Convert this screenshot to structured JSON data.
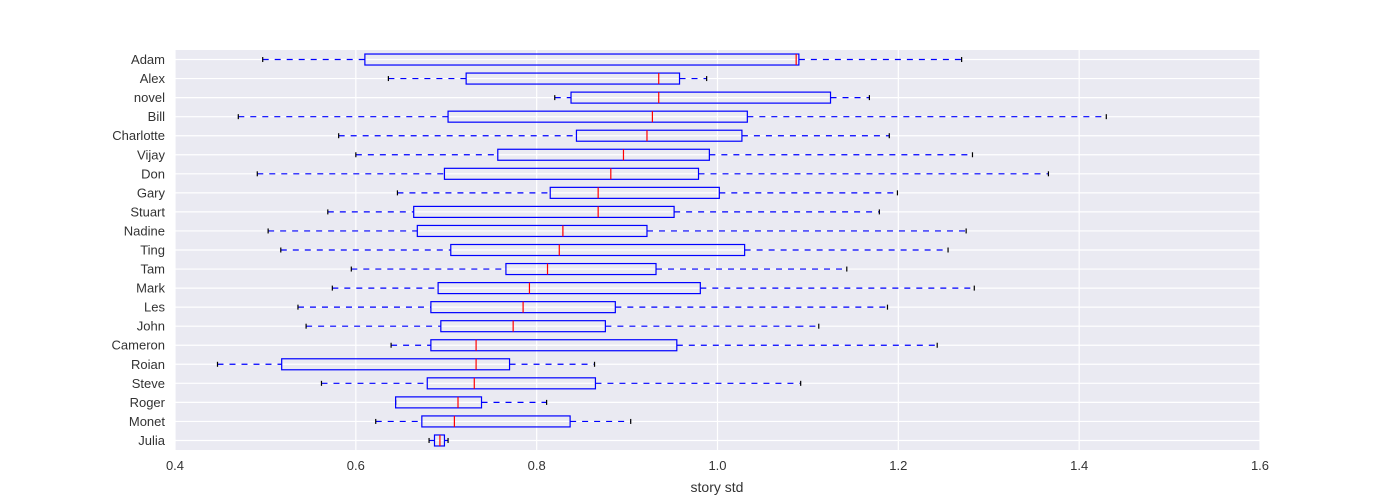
{
  "chart_data": {
    "type": "boxplot",
    "orientation": "horizontal",
    "xlabel": "story std",
    "xlim": [
      0.4,
      1.6
    ],
    "xticks": [
      0.4,
      0.6,
      0.8,
      1.0,
      1.2,
      1.4,
      1.6
    ],
    "xtick_labels": [
      "0.4",
      "0.6",
      "0.8",
      "1.0",
      "1.2",
      "1.4",
      "1.6"
    ],
    "grid": true,
    "colors": {
      "background": "#eaeaf2",
      "grid": "#ffffff",
      "box": "#0000ff",
      "whisker": "#0000ff",
      "median": "#ff0000",
      "cap": "#000000"
    },
    "series": [
      {
        "name": "Adam",
        "whisker_low": 0.497,
        "q1": 0.61,
        "median": 1.087,
        "q3": 1.09,
        "whisker_high": 1.27
      },
      {
        "name": "Alex",
        "whisker_low": 0.636,
        "q1": 0.722,
        "median": 0.935,
        "q3": 0.958,
        "whisker_high": 0.988
      },
      {
        "name": "novel",
        "whisker_low": 0.82,
        "q1": 0.838,
        "median": 0.935,
        "q3": 1.125,
        "whisker_high": 1.168
      },
      {
        "name": "Bill",
        "whisker_low": 0.47,
        "q1": 0.702,
        "median": 0.928,
        "q3": 1.033,
        "whisker_high": 1.43
      },
      {
        "name": "Charlotte",
        "whisker_low": 0.581,
        "q1": 0.844,
        "median": 0.922,
        "q3": 1.027,
        "whisker_high": 1.19
      },
      {
        "name": "Vijay",
        "whisker_low": 0.6,
        "q1": 0.757,
        "median": 0.896,
        "q3": 0.991,
        "whisker_high": 1.282
      },
      {
        "name": "Don",
        "whisker_low": 0.491,
        "q1": 0.698,
        "median": 0.882,
        "q3": 0.979,
        "whisker_high": 1.366
      },
      {
        "name": "Gary",
        "whisker_low": 0.646,
        "q1": 0.815,
        "median": 0.868,
        "q3": 1.002,
        "whisker_high": 1.199
      },
      {
        "name": "Stuart",
        "whisker_low": 0.569,
        "q1": 0.664,
        "median": 0.868,
        "q3": 0.952,
        "whisker_high": 1.179
      },
      {
        "name": "Nadine",
        "whisker_low": 0.503,
        "q1": 0.668,
        "median": 0.829,
        "q3": 0.922,
        "whisker_high": 1.275
      },
      {
        "name": "Ting",
        "whisker_low": 0.517,
        "q1": 0.705,
        "median": 0.825,
        "q3": 1.03,
        "whisker_high": 1.255
      },
      {
        "name": "Tam",
        "whisker_low": 0.595,
        "q1": 0.766,
        "median": 0.812,
        "q3": 0.932,
        "whisker_high": 1.143
      },
      {
        "name": "Mark",
        "whisker_low": 0.574,
        "q1": 0.691,
        "median": 0.792,
        "q3": 0.981,
        "whisker_high": 1.284
      },
      {
        "name": "Les",
        "whisker_low": 0.536,
        "q1": 0.683,
        "median": 0.785,
        "q3": 0.887,
        "whisker_high": 1.188
      },
      {
        "name": "John",
        "whisker_low": 0.545,
        "q1": 0.694,
        "median": 0.774,
        "q3": 0.876,
        "whisker_high": 1.112
      },
      {
        "name": "Cameron",
        "whisker_low": 0.639,
        "q1": 0.683,
        "median": 0.733,
        "q3": 0.955,
        "whisker_high": 1.243
      },
      {
        "name": "Roian",
        "whisker_low": 0.447,
        "q1": 0.518,
        "median": 0.733,
        "q3": 0.77,
        "whisker_high": 0.864
      },
      {
        "name": "Steve",
        "whisker_low": 0.562,
        "q1": 0.679,
        "median": 0.731,
        "q3": 0.865,
        "whisker_high": 1.092
      },
      {
        "name": "Roger",
        "whisker_low": 0.644,
        "q1": 0.644,
        "median": 0.713,
        "q3": 0.739,
        "whisker_high": 0.811
      },
      {
        "name": "Monet",
        "whisker_low": 0.622,
        "q1": 0.673,
        "median": 0.709,
        "q3": 0.837,
        "whisker_high": 0.904
      },
      {
        "name": "Julia",
        "whisker_low": 0.681,
        "q1": 0.687,
        "median": 0.693,
        "q3": 0.698,
        "whisker_high": 0.702
      }
    ]
  }
}
